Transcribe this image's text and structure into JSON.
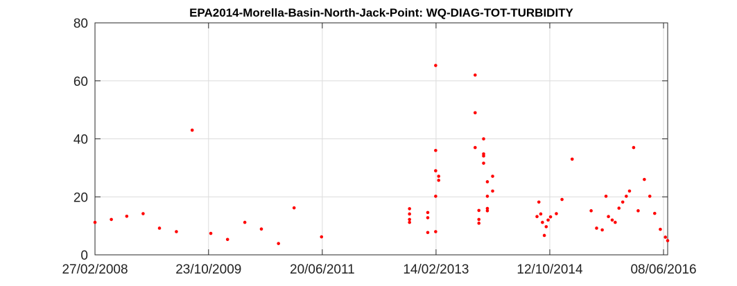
{
  "chart_data": {
    "type": "scatter",
    "title": "EPA2014-Morella-Basin-North-Jack-Point: WQ-DIAG-TOT-TURBIDITY",
    "xlabel": "",
    "ylabel": "",
    "x_axis_type": "date",
    "xlim": [
      "2008-02-27",
      "2016-06-30"
    ],
    "ylim": [
      0,
      80
    ],
    "x_ticks": [
      "2008-02-27",
      "2009-10-23",
      "2011-06-20",
      "2013-02-14",
      "2014-10-12",
      "2016-06-08"
    ],
    "x_tick_labels": [
      "27/02/2008",
      "23/10/2009",
      "20/06/2011",
      "14/02/2013",
      "12/10/2014",
      "08/06/2016"
    ],
    "y_ticks": [
      0,
      20,
      40,
      60,
      80
    ],
    "y_tick_labels": [
      "0",
      "20",
      "40",
      "60",
      "80"
    ],
    "grid": true,
    "marker_color": "#ff0000",
    "series": [
      {
        "points": [
          [
            "2008-02-27",
            11.2
          ],
          [
            "2008-05-24",
            12.2
          ],
          [
            "2008-08-14",
            13.3
          ],
          [
            "2008-11-09",
            14.2
          ],
          [
            "2009-02-04",
            9.2
          ],
          [
            "2009-05-05",
            8.0
          ],
          [
            "2009-07-28",
            43.0
          ],
          [
            "2009-11-04",
            7.4
          ],
          [
            "2010-02-01",
            5.3
          ],
          [
            "2010-05-04",
            11.2
          ],
          [
            "2010-07-31",
            8.9
          ],
          [
            "2010-10-30",
            3.9
          ],
          [
            "2011-01-21",
            16.2
          ],
          [
            "2011-06-16",
            6.2
          ],
          [
            "2012-09-26",
            15.9
          ],
          [
            "2012-09-26",
            14.1
          ],
          [
            "2012-09-26",
            12.2
          ],
          [
            "2012-09-26",
            11.2
          ],
          [
            "2013-01-01",
            14.6
          ],
          [
            "2013-01-01",
            12.8
          ],
          [
            "2013-01-01",
            7.7
          ],
          [
            "2013-02-12",
            65.3
          ],
          [
            "2013-02-12",
            36.0
          ],
          [
            "2013-02-12",
            29.0
          ],
          [
            "2013-02-12",
            20.2
          ],
          [
            "2013-02-12",
            8.0
          ],
          [
            "2013-02-28",
            27.1
          ],
          [
            "2013-02-28",
            25.7
          ],
          [
            "2013-09-10",
            62.0
          ],
          [
            "2013-09-10",
            49.0
          ],
          [
            "2013-09-10",
            37.0
          ],
          [
            "2013-09-30",
            15.3
          ],
          [
            "2013-09-30",
            12.2
          ],
          [
            "2013-09-30",
            10.9
          ],
          [
            "2013-10-25",
            40.0
          ],
          [
            "2013-10-25",
            34.8
          ],
          [
            "2013-10-25",
            34.1
          ],
          [
            "2013-10-25",
            31.6
          ],
          [
            "2013-11-14",
            25.2
          ],
          [
            "2013-11-14",
            20.2
          ],
          [
            "2013-11-14",
            16.0
          ],
          [
            "2013-11-14",
            15.2
          ],
          [
            "2013-12-12",
            27.1
          ],
          [
            "2013-12-12",
            22.0
          ],
          [
            "2014-08-05",
            13.2
          ],
          [
            "2014-08-15",
            18.2
          ],
          [
            "2014-08-25",
            14.1
          ],
          [
            "2014-09-03",
            11.2
          ],
          [
            "2014-09-13",
            6.7
          ],
          [
            "2014-09-23",
            9.7
          ],
          [
            "2014-10-03",
            12.0
          ],
          [
            "2014-10-16",
            13.1
          ],
          [
            "2014-11-16",
            14.2
          ],
          [
            "2014-12-16",
            19.1
          ],
          [
            "2015-02-08",
            33.0
          ],
          [
            "2015-05-20",
            15.2
          ],
          [
            "2015-06-18",
            9.2
          ],
          [
            "2015-07-18",
            8.6
          ],
          [
            "2015-08-07",
            20.2
          ],
          [
            "2015-08-20",
            13.2
          ],
          [
            "2015-09-09",
            12.0
          ],
          [
            "2015-09-25",
            11.2
          ],
          [
            "2015-10-15",
            16.1
          ],
          [
            "2015-11-04",
            18.2
          ],
          [
            "2015-11-23",
            20.2
          ],
          [
            "2015-12-10",
            22.0
          ],
          [
            "2016-01-01",
            37.0
          ],
          [
            "2016-01-25",
            15.2
          ],
          [
            "2016-02-27",
            26.0
          ],
          [
            "2016-03-27",
            20.2
          ],
          [
            "2016-04-22",
            14.3
          ],
          [
            "2016-05-22",
            8.8
          ],
          [
            "2016-06-18",
            6.1
          ],
          [
            "2016-06-30",
            4.9
          ]
        ]
      }
    ]
  }
}
